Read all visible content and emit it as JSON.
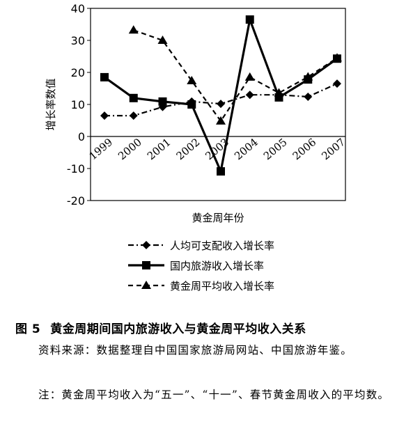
{
  "chart_data": {
    "type": "line",
    "categories": [
      "1999",
      "2000",
      "2001",
      "2002",
      "2003",
      "2004",
      "2005",
      "2006",
      "2007"
    ],
    "series": [
      {
        "name": "人均可支配收入增长率",
        "marker": "diamond",
        "dash": "dash-dot",
        "values": [
          6.5,
          6.5,
          9.2,
          10.9,
          10.2,
          13.0,
          13.0,
          12.4,
          16.5
        ]
      },
      {
        "name": "国内旅游收入增长率",
        "marker": "square",
        "dash": "solid",
        "values": [
          18.5,
          12.0,
          10.9,
          10.0,
          -10.9,
          36.5,
          12.2,
          17.8,
          24.3
        ]
      },
      {
        "name": "黄金周平均收入增长率",
        "marker": "triangle",
        "dash": "dash",
        "values": [
          null,
          33.2,
          30.0,
          17.4,
          4.8,
          18.5,
          13.6,
          18.6,
          24.5
        ]
      }
    ],
    "xlabel": "黄金周年份",
    "ylabel": "增长率数值",
    "ylim": [
      -20,
      40
    ],
    "yticks": [
      -20,
      -10,
      0,
      10,
      20,
      30,
      40
    ],
    "grid": false,
    "legend_position": "bottom"
  },
  "caption": {
    "figure_number": "图 5",
    "title": "黄金周期间国内旅游收入与黄金周平均收入关系"
  },
  "notes": {
    "source": "资料来源：数据整理自中国国家旅游局网站、中国旅游年鉴。",
    "note": "注：黄金周平均收入为“五一”、“十一”、春节黄金周收入的平均数。"
  }
}
